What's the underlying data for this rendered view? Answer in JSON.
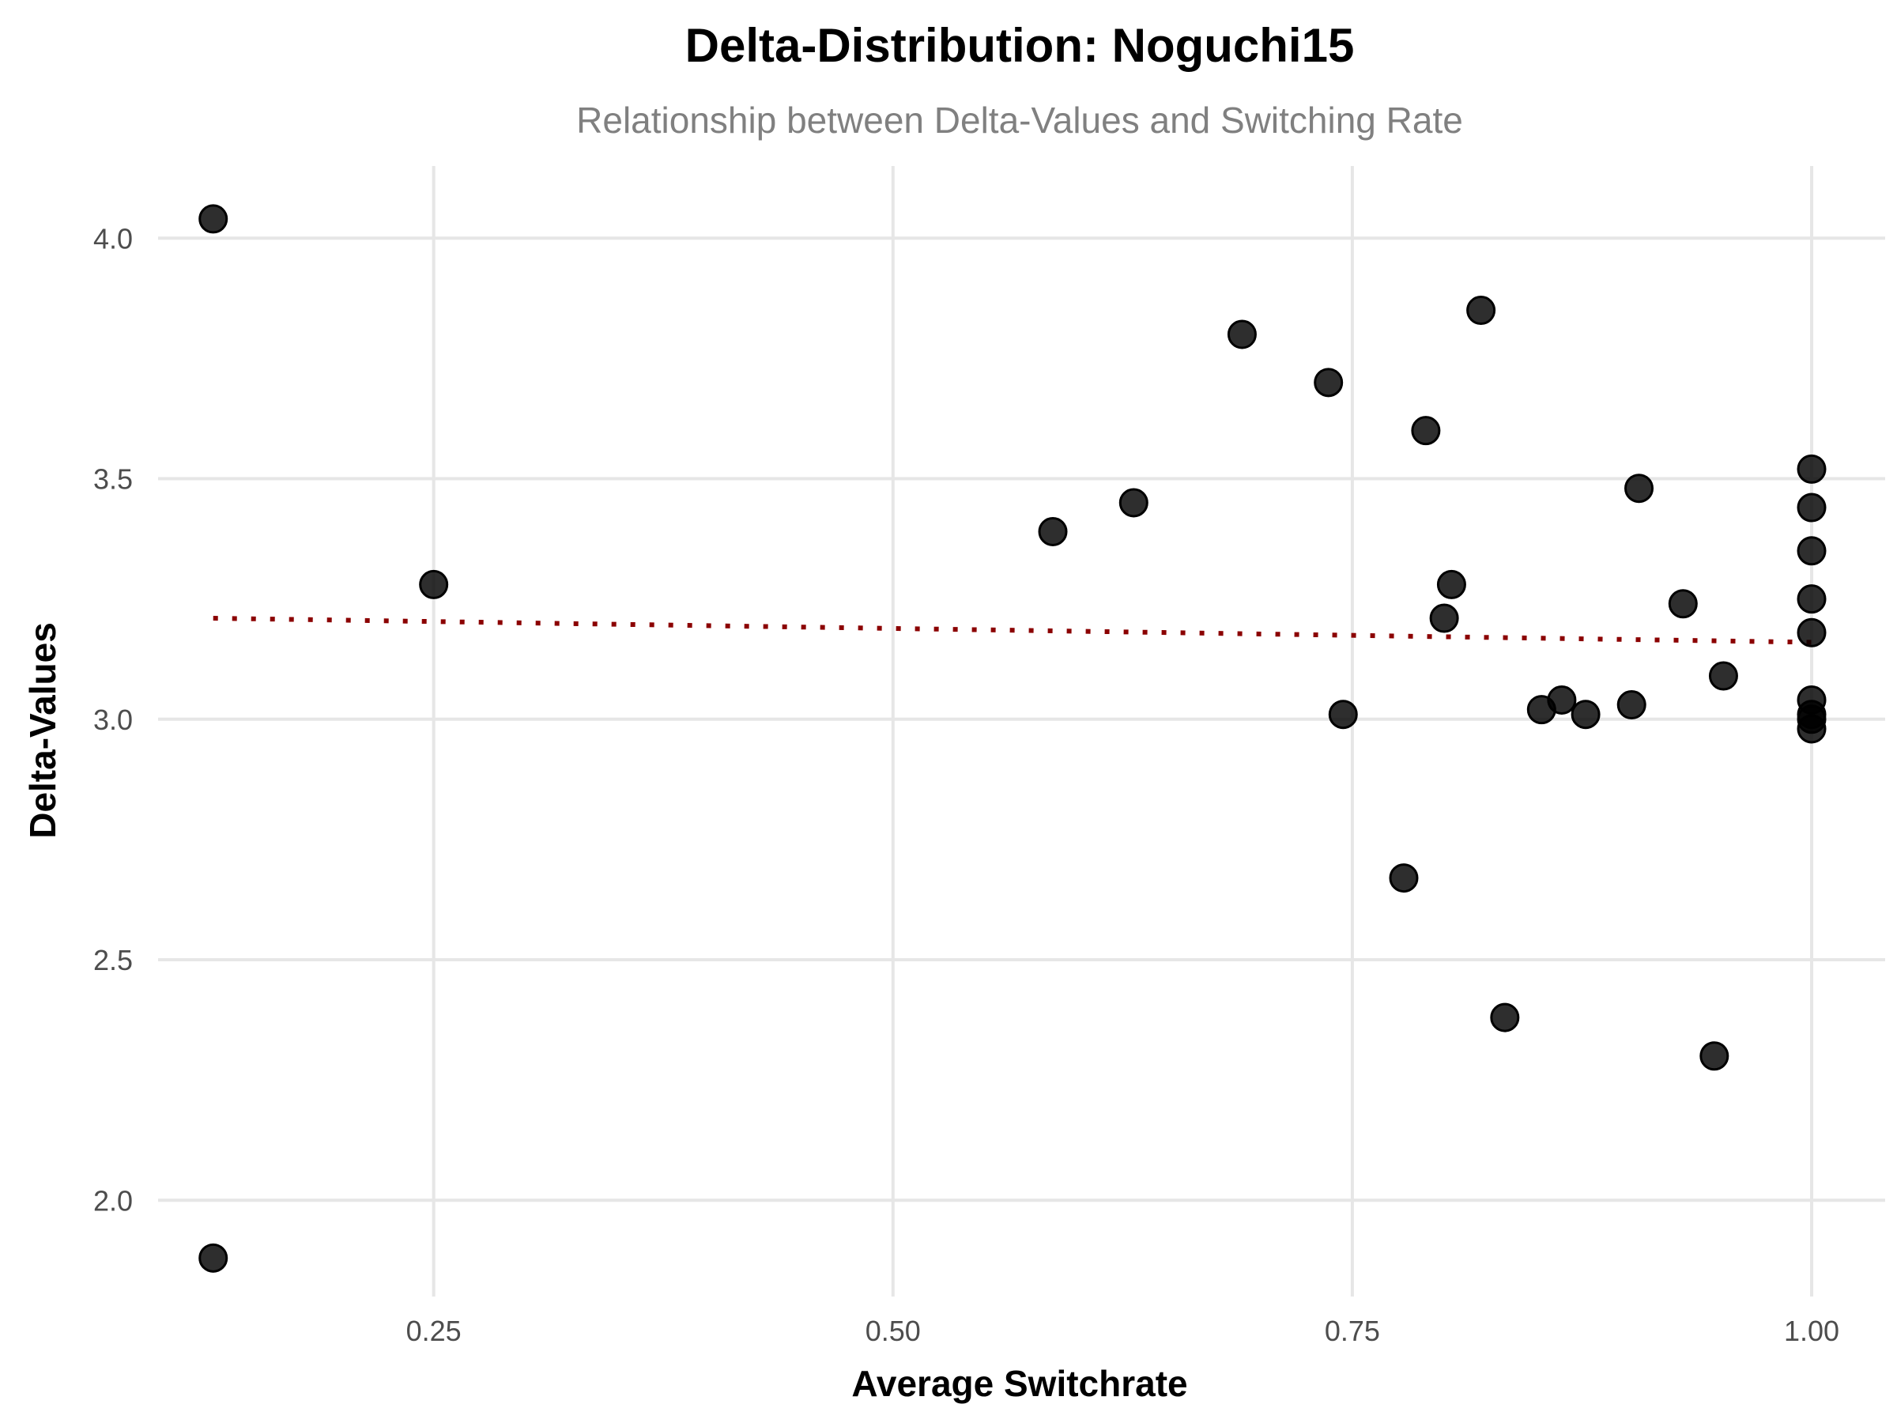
{
  "chart_data": {
    "type": "scatter",
    "title": "Delta-Distribution: Noguchi15",
    "subtitle": "Relationship between Delta-Values and Switching Rate",
    "xlabel": "Average Switchrate",
    "ylabel": "Delta-Values",
    "xlim": [
      0.1,
      1.04
    ],
    "ylim": [
      1.8,
      4.15
    ],
    "x_ticks": [
      0.25,
      0.5,
      0.75,
      1.0
    ],
    "x_tick_labels": [
      "0.25",
      "0.50",
      "0.75",
      "1.00"
    ],
    "y_ticks": [
      2.0,
      2.5,
      3.0,
      3.5,
      4.0
    ],
    "y_tick_labels": [
      "2.0",
      "2.5",
      "3.0",
      "3.5",
      "4.0"
    ],
    "grid": true,
    "point_color": "#000000",
    "trend_color": "#8b0000",
    "trend_line": {
      "style": "dotted",
      "x": [
        0.13,
        1.0
      ],
      "y": [
        3.21,
        3.16
      ]
    },
    "points": [
      {
        "x": 0.13,
        "y": 4.04
      },
      {
        "x": 0.13,
        "y": 1.88
      },
      {
        "x": 0.25,
        "y": 3.28
      },
      {
        "x": 0.587,
        "y": 3.39
      },
      {
        "x": 0.631,
        "y": 3.45
      },
      {
        "x": 0.69,
        "y": 3.8
      },
      {
        "x": 0.737,
        "y": 3.7
      },
      {
        "x": 0.745,
        "y": 3.01
      },
      {
        "x": 0.778,
        "y": 2.67
      },
      {
        "x": 0.79,
        "y": 3.6
      },
      {
        "x": 0.8,
        "y": 3.21
      },
      {
        "x": 0.804,
        "y": 3.28
      },
      {
        "x": 0.82,
        "y": 3.85
      },
      {
        "x": 0.833,
        "y": 2.38
      },
      {
        "x": 0.853,
        "y": 3.02
      },
      {
        "x": 0.864,
        "y": 3.04
      },
      {
        "x": 0.877,
        "y": 3.01
      },
      {
        "x": 0.902,
        "y": 3.03
      },
      {
        "x": 0.906,
        "y": 3.48
      },
      {
        "x": 0.93,
        "y": 3.24
      },
      {
        "x": 0.947,
        "y": 2.3
      },
      {
        "x": 0.952,
        "y": 3.09
      },
      {
        "x": 1.0,
        "y": 3.52
      },
      {
        "x": 1.0,
        "y": 3.44
      },
      {
        "x": 1.0,
        "y": 3.35
      },
      {
        "x": 1.0,
        "y": 3.25
      },
      {
        "x": 1.0,
        "y": 3.18
      },
      {
        "x": 1.0,
        "y": 3.04
      },
      {
        "x": 1.0,
        "y": 3.01
      },
      {
        "x": 1.0,
        "y": 3.0
      },
      {
        "x": 1.0,
        "y": 2.98
      }
    ]
  }
}
